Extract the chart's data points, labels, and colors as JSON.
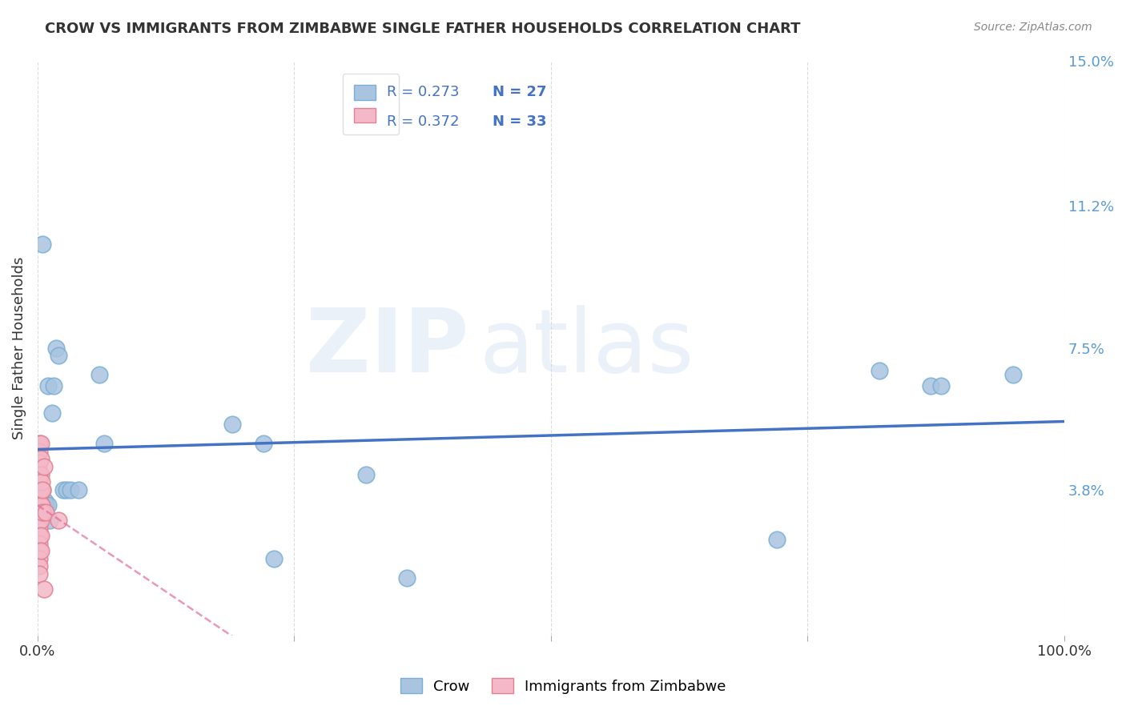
{
  "title": "CROW VS IMMIGRANTS FROM ZIMBABWE SINGLE FATHER HOUSEHOLDS CORRELATION CHART",
  "source": "Source: ZipAtlas.com",
  "ylabel": "Single Father Households",
  "xlim": [
    0,
    1.0
  ],
  "ylim": [
    0,
    0.15
  ],
  "y_tick_labels_right": [
    "15.0%",
    "11.2%",
    "7.5%",
    "3.8%"
  ],
  "y_tick_vals_right": [
    0.15,
    0.112,
    0.075,
    0.038
  ],
  "background_color": "#ffffff",
  "grid_color": "#cccccc",
  "legend_r1": "R = 0.273",
  "legend_n1": "N = 27",
  "legend_r2": "R = 0.372",
  "legend_n2": "N = 33",
  "crow_color": "#a8c4e0",
  "crow_edge_color": "#7aafd4",
  "crow_line_color": "#4472c4",
  "zimb_color": "#f4b8c8",
  "zimb_edge_color": "#e08090",
  "zimb_line_color": "#e07090",
  "crow_points": [
    [
      0.005,
      0.102
    ],
    [
      0.01,
      0.065
    ],
    [
      0.014,
      0.058
    ],
    [
      0.016,
      0.065
    ],
    [
      0.018,
      0.075
    ],
    [
      0.02,
      0.073
    ],
    [
      0.025,
      0.038
    ],
    [
      0.028,
      0.038
    ],
    [
      0.032,
      0.038
    ],
    [
      0.04,
      0.038
    ],
    [
      0.005,
      0.038
    ],
    [
      0.007,
      0.035
    ],
    [
      0.008,
      0.034
    ],
    [
      0.01,
      0.034
    ],
    [
      0.012,
      0.03
    ],
    [
      0.06,
      0.068
    ],
    [
      0.065,
      0.05
    ],
    [
      0.19,
      0.055
    ],
    [
      0.22,
      0.05
    ],
    [
      0.23,
      0.02
    ],
    [
      0.32,
      0.042
    ],
    [
      0.36,
      0.015
    ],
    [
      0.72,
      0.025
    ],
    [
      0.82,
      0.069
    ],
    [
      0.87,
      0.065
    ],
    [
      0.88,
      0.065
    ],
    [
      0.95,
      0.068
    ]
  ],
  "zimb_points": [
    [
      0.002,
      0.05
    ],
    [
      0.002,
      0.048
    ],
    [
      0.002,
      0.045
    ],
    [
      0.002,
      0.042
    ],
    [
      0.002,
      0.04
    ],
    [
      0.002,
      0.038
    ],
    [
      0.002,
      0.036
    ],
    [
      0.002,
      0.034
    ],
    [
      0.002,
      0.032
    ],
    [
      0.002,
      0.03
    ],
    [
      0.002,
      0.028
    ],
    [
      0.002,
      0.026
    ],
    [
      0.002,
      0.024
    ],
    [
      0.002,
      0.022
    ],
    [
      0.002,
      0.02
    ],
    [
      0.002,
      0.018
    ],
    [
      0.002,
      0.016
    ],
    [
      0.003,
      0.05
    ],
    [
      0.003,
      0.046
    ],
    [
      0.003,
      0.042
    ],
    [
      0.003,
      0.038
    ],
    [
      0.003,
      0.034
    ],
    [
      0.003,
      0.03
    ],
    [
      0.003,
      0.026
    ],
    [
      0.003,
      0.022
    ],
    [
      0.004,
      0.04
    ],
    [
      0.004,
      0.034
    ],
    [
      0.005,
      0.038
    ],
    [
      0.005,
      0.032
    ],
    [
      0.006,
      0.044
    ],
    [
      0.008,
      0.032
    ],
    [
      0.02,
      0.03
    ],
    [
      0.006,
      0.012
    ]
  ]
}
